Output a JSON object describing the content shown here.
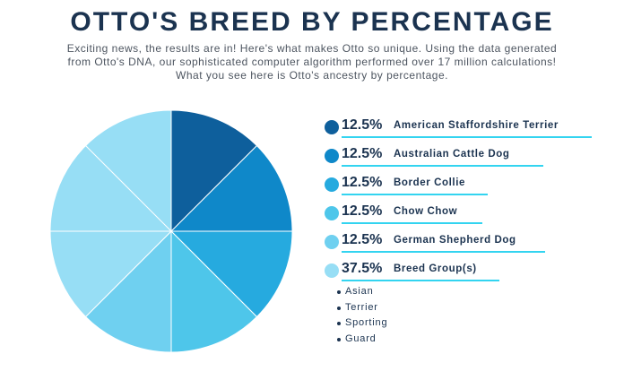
{
  "header": {
    "title": "OTTO'S BREED BY PERCENTAGE",
    "intro_lines": [
      "Exciting news, the results are in! Here's what makes Otto so unique. Using the data generated",
      "from Otto's DNA, our sophisticated computer algorithm performed over 17 million calculations!",
      "What you see here is Otto's ancestry by percentage."
    ]
  },
  "chart_data": {
    "type": "pie",
    "title": "OTTO'S BREED BY PERCENTAGE",
    "slices": [
      {
        "label": "American Staffordshire Terrier",
        "value": 12.5,
        "display": "12.5%",
        "color": "#0e5f9c"
      },
      {
        "label": "Australian Cattle Dog",
        "value": 12.5,
        "display": "12.5%",
        "color": "#0f88c9"
      },
      {
        "label": "Border Collie",
        "value": 12.5,
        "display": "12.5%",
        "color": "#26aadf"
      },
      {
        "label": "Chow Chow",
        "value": 12.5,
        "display": "12.5%",
        "color": "#4ec6ea"
      },
      {
        "label": "German Shepherd Dog",
        "value": 12.5,
        "display": "12.5%",
        "color": "#6fd0f0"
      },
      {
        "label": "Breed Group(s)",
        "value": 37.5,
        "display": "37.5%",
        "color": "#97def5"
      }
    ],
    "breed_groups": [
      "Asian",
      "Terrier",
      "Sporting",
      "Guard"
    ],
    "legend_position": "right",
    "underline_color": "#33d4f0"
  }
}
